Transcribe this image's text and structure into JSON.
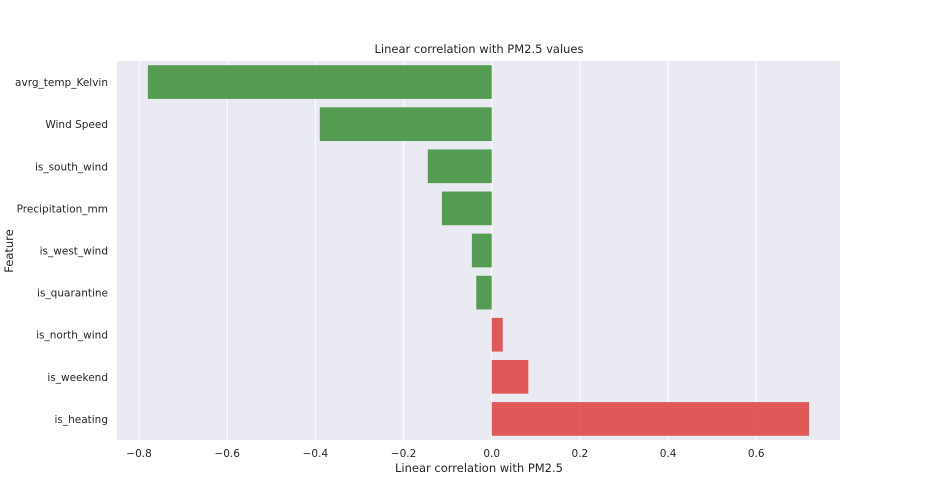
{
  "colors": {
    "background": "#eaeaf2",
    "grid": "#ffffff",
    "negative": "#43933f",
    "positive": "#e04848"
  },
  "chart_data": {
    "type": "bar",
    "orientation": "horizontal",
    "title": "Linear correlation with PM2.5 values",
    "xlabel": "Linear correlation with PM2.5",
    "ylabel": "Feature",
    "xlim": [
      -0.85,
      0.79
    ],
    "xticks": [
      -0.8,
      -0.6,
      -0.4,
      -0.2,
      0.0,
      0.2,
      0.4,
      0.6
    ],
    "xtick_labels": [
      "−0.8",
      "−0.6",
      "−0.4",
      "−0.2",
      "0.0",
      "0.2",
      "0.4",
      "0.6"
    ],
    "grid": "vertical",
    "categories": [
      "avrg_temp_Kelvin",
      "Wind Speed",
      "is_south_wind",
      "Precipitation_mm",
      "is_west_wind",
      "is_quarantine",
      "is_north_wind",
      "is_weekend",
      "is_heating"
    ],
    "values": [
      -0.78,
      -0.39,
      -0.145,
      -0.113,
      -0.045,
      -0.035,
      0.025,
      0.083,
      0.72
    ]
  }
}
